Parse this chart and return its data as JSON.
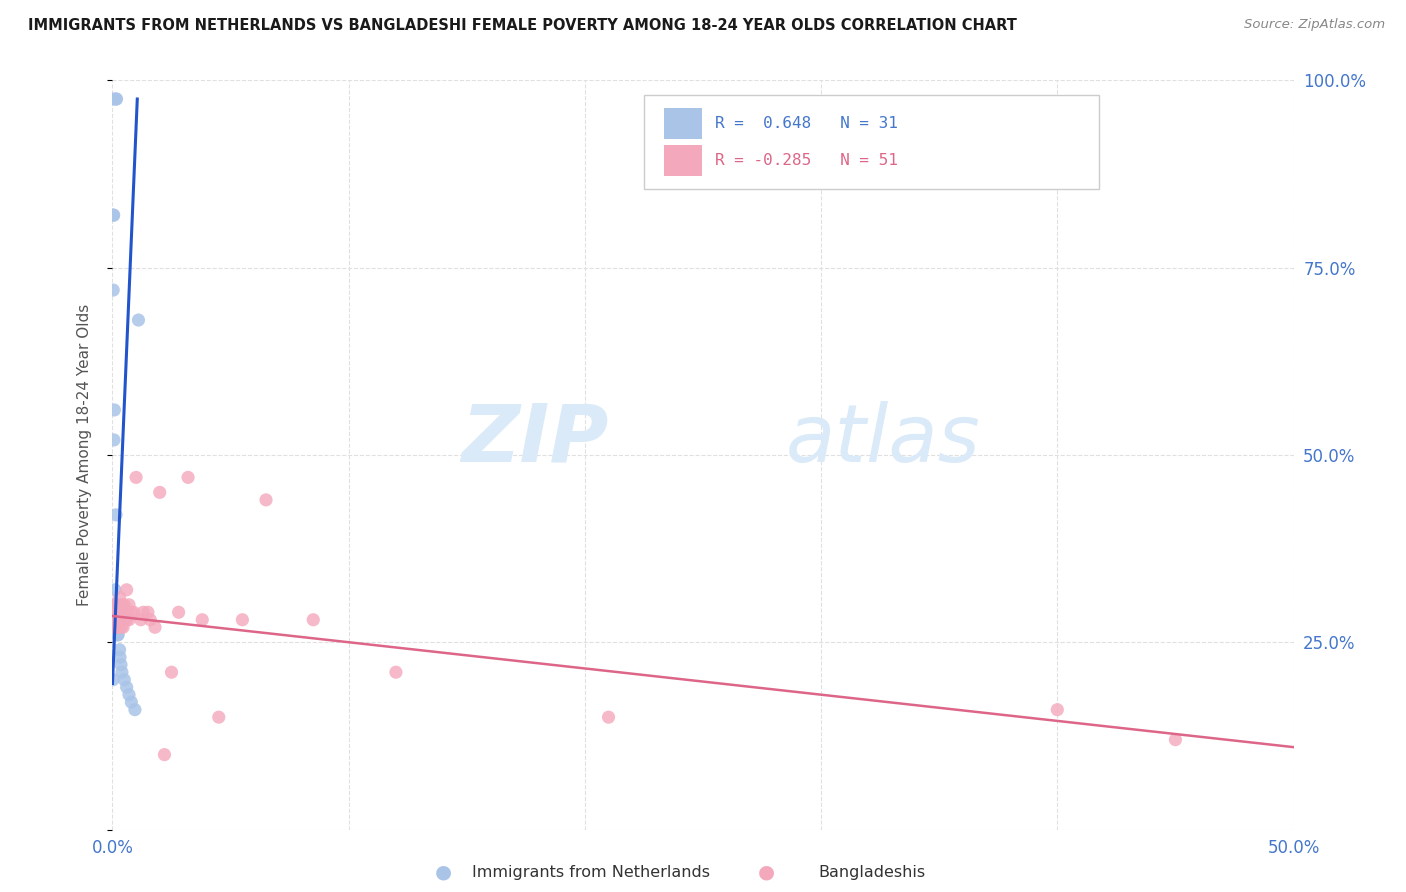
{
  "title": "IMMIGRANTS FROM NETHERLANDS VS BANGLADESHI FEMALE POVERTY AMONG 18-24 YEAR OLDS CORRELATION CHART",
  "source": "Source: ZipAtlas.com",
  "ylabel": "Female Poverty Among 18-24 Year Olds",
  "xlim": [
    0.0,
    0.5
  ],
  "ylim": [
    0.0,
    1.0
  ],
  "r_blue": 0.648,
  "n_blue": 31,
  "r_pink": -0.285,
  "n_pink": 51,
  "color_blue": "#aac4e8",
  "color_pink": "#f4a8bc",
  "line_blue": "#2255cc",
  "line_pink": "#dd6688",
  "blue_x": [
    0.0003,
    0.0015,
    0.0017,
    0.0003,
    0.0004,
    0.0005,
    0.0006,
    0.0008,
    0.001,
    0.001,
    0.0012,
    0.0013,
    0.0015,
    0.0017,
    0.0018,
    0.002,
    0.0022,
    0.0024,
    0.003,
    0.0032,
    0.0036,
    0.004,
    0.005,
    0.006,
    0.007,
    0.008,
    0.0095,
    0.011,
    0.0015,
    0.0015,
    0.0002
  ],
  "blue_y": [
    0.975,
    0.975,
    0.975,
    0.72,
    0.82,
    0.82,
    0.52,
    0.56,
    0.32,
    0.3,
    0.28,
    0.28,
    0.27,
    0.27,
    0.27,
    0.26,
    0.26,
    0.26,
    0.24,
    0.23,
    0.22,
    0.21,
    0.2,
    0.19,
    0.18,
    0.17,
    0.16,
    0.68,
    0.42,
    0.3,
    0.2
  ],
  "pink_x": [
    0.0005,
    0.001,
    0.001,
    0.0013,
    0.0015,
    0.0016,
    0.0018,
    0.002,
    0.002,
    0.0022,
    0.0023,
    0.0025,
    0.0027,
    0.003,
    0.003,
    0.0032,
    0.0035,
    0.0038,
    0.004,
    0.004,
    0.0042,
    0.0045,
    0.005,
    0.005,
    0.0055,
    0.006,
    0.006,
    0.007,
    0.007,
    0.008,
    0.009,
    0.01,
    0.012,
    0.013,
    0.015,
    0.016,
    0.018,
    0.02,
    0.022,
    0.025,
    0.028,
    0.032,
    0.038,
    0.045,
    0.055,
    0.065,
    0.085,
    0.12,
    0.21,
    0.4,
    0.45
  ],
  "pink_y": [
    0.27,
    0.28,
    0.28,
    0.3,
    0.27,
    0.28,
    0.29,
    0.3,
    0.28,
    0.29,
    0.28,
    0.27,
    0.28,
    0.31,
    0.29,
    0.29,
    0.28,
    0.27,
    0.3,
    0.28,
    0.28,
    0.27,
    0.3,
    0.28,
    0.29,
    0.32,
    0.28,
    0.3,
    0.28,
    0.29,
    0.29,
    0.47,
    0.28,
    0.29,
    0.29,
    0.28,
    0.27,
    0.45,
    0.1,
    0.21,
    0.29,
    0.47,
    0.28,
    0.15,
    0.28,
    0.44,
    0.28,
    0.21,
    0.15,
    0.16,
    0.12
  ],
  "blue_line_x": [
    0.0,
    0.0105
  ],
  "blue_line_y": [
    0.195,
    0.975
  ],
  "pink_line_x": [
    0.0,
    0.5
  ],
  "pink_line_y": [
    0.285,
    0.11
  ],
  "watermark_zip": "ZIP",
  "watermark_atlas": "atlas",
  "watermark_color": "#daeaf8",
  "background_color": "#ffffff",
  "grid_color": "#e0e0e0",
  "right_tick_color": "#4477cc",
  "bottom_tick_color": "#4477cc"
}
